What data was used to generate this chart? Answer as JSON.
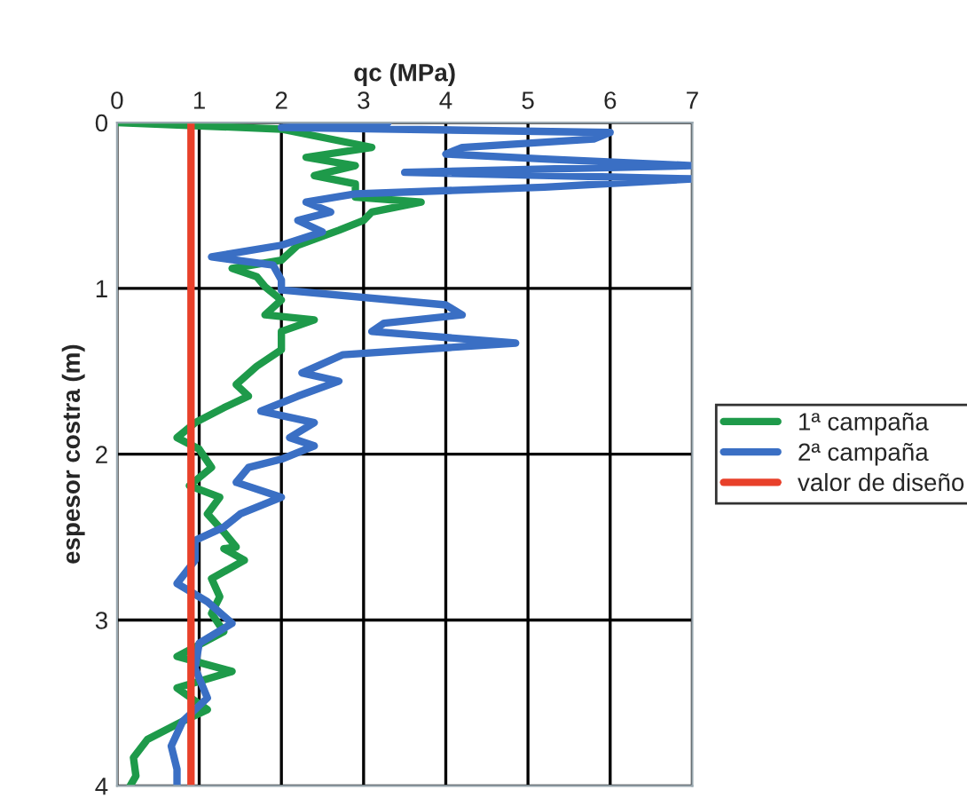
{
  "chart_data": {
    "type": "line",
    "xlabel": "qc (MPa)",
    "ylabel": "espesor costra (m)",
    "xlim": [
      0,
      7
    ],
    "xticks": [
      0,
      1,
      2,
      3,
      4,
      5,
      6,
      7
    ],
    "ylim": [
      4,
      0
    ],
    "yticks": [
      0,
      1,
      2,
      3,
      4
    ],
    "grid": true,
    "legend": "right",
    "series": [
      {
        "name": "1ª campaña",
        "color": "#1e9a4a",
        "x": [
          0,
          1.0,
          2.0,
          3.1,
          2.3,
          2.9,
          2.4,
          2.9,
          2.9,
          3.7,
          3.1,
          3.0,
          2.7,
          2.2,
          2.0,
          1.4,
          1.7,
          1.8,
          2.0,
          1.8,
          2.4,
          2.0,
          2.0,
          1.7,
          1.45,
          1.6,
          1.3,
          0.95,
          0.73,
          1.0,
          1.15,
          0.88,
          1.25,
          1.1,
          1.3,
          1.45,
          1.3,
          1.55,
          1.15,
          1.25,
          1.15,
          1.3,
          0.73,
          1.4,
          0.73,
          1.1,
          0.8,
          0.37,
          0.2,
          0.23,
          0.16
        ],
        "values": [
          0,
          0.02,
          0.04,
          0.15,
          0.21,
          0.26,
          0.32,
          0.37,
          0.45,
          0.48,
          0.54,
          0.59,
          0.65,
          0.74,
          0.83,
          0.88,
          0.93,
          0.99,
          1.07,
          1.16,
          1.19,
          1.26,
          1.37,
          1.47,
          1.58,
          1.65,
          1.72,
          1.81,
          1.9,
          1.97,
          2.08,
          2.19,
          2.26,
          2.36,
          2.47,
          2.56,
          2.57,
          2.64,
          2.75,
          2.86,
          2.96,
          3.07,
          3.22,
          3.31,
          3.41,
          3.54,
          3.61,
          3.72,
          3.83,
          3.94,
          4.0
        ]
      },
      {
        "name": "2ª campaña",
        "color": "#3a6fc4",
        "x": [
          3.3,
          2.0,
          6.0,
          5.8,
          4.2,
          4.0,
          5.2,
          7.0,
          3.5,
          7.0,
          5.2,
          2.9,
          2.3,
          2.6,
          2.2,
          2.5,
          2.0,
          1.15,
          1.9,
          2.0,
          2.0,
          4.0,
          4.2,
          3.25,
          3.1,
          4.85,
          2.75,
          2.25,
          2.7,
          2.2,
          1.75,
          2.4,
          2.1,
          2.4,
          2.0,
          1.6,
          1.45,
          2.0,
          1.5,
          1.3,
          0.95,
          0.95,
          0.73,
          1.1,
          1.4,
          1.0,
          0.95,
          1.1,
          0.8,
          0.66,
          0.73,
          0.73
        ],
        "values": [
          0,
          0.03,
          0.06,
          0.1,
          0.15,
          0.19,
          0.22,
          0.26,
          0.3,
          0.34,
          0.39,
          0.43,
          0.48,
          0.54,
          0.59,
          0.66,
          0.74,
          0.81,
          0.86,
          0.95,
          1.01,
          1.1,
          1.16,
          1.21,
          1.26,
          1.33,
          1.4,
          1.51,
          1.56,
          1.65,
          1.74,
          1.81,
          1.9,
          1.95,
          2.03,
          2.08,
          2.17,
          2.26,
          2.36,
          2.44,
          2.52,
          2.64,
          2.78,
          2.89,
          3.02,
          3.14,
          3.29,
          3.47,
          3.61,
          3.76,
          3.9,
          4.0
        ]
      },
      {
        "name": "valor de diseño",
        "color": "#e8402a",
        "x": [
          0.9,
          0.9
        ],
        "values": [
          0,
          4
        ]
      }
    ]
  }
}
